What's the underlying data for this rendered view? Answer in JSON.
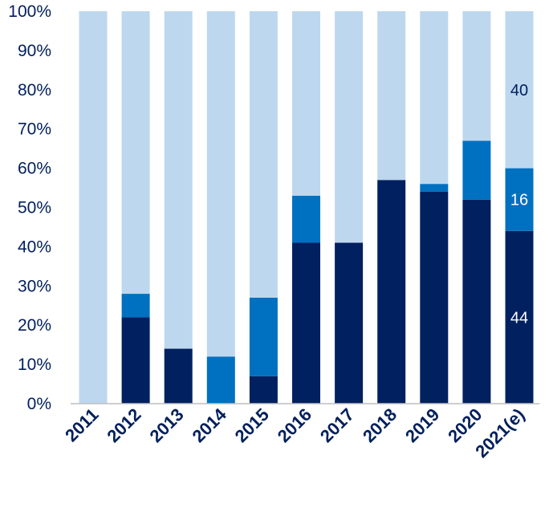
{
  "chart_data": {
    "type": "bar",
    "stacked": true,
    "percent": true,
    "categories": [
      "2011",
      "2012",
      "2013",
      "2014",
      "2015",
      "2016",
      "2017",
      "2018",
      "2019",
      "2020",
      "2021(e)"
    ],
    "series": [
      {
        "values": [
          0,
          22,
          14,
          0,
          7,
          41,
          41,
          57,
          54,
          52,
          44
        ],
        "color": "#002060"
      },
      {
        "values": [
          0,
          6,
          0,
          12,
          20,
          12,
          0,
          0,
          2,
          15,
          16
        ],
        "color": "#0070c0"
      },
      {
        "values": [
          100,
          72,
          86,
          88,
          73,
          47,
          59,
          43,
          44,
          33,
          40
        ],
        "color": "#bdd7ee"
      }
    ],
    "yticks": [
      "0%",
      "10%",
      "20%",
      "30%",
      "40%",
      "50%",
      "60%",
      "70%",
      "80%",
      "90%",
      "100%"
    ],
    "ylim": [
      0,
      100
    ],
    "grid": false,
    "legend": "none",
    "data_labels": [
      {
        "category": "2021(e)",
        "series": 0,
        "text": "44",
        "color": "#ffffff"
      },
      {
        "category": "2021(e)",
        "series": 1,
        "text": "16",
        "color": "#ffffff"
      },
      {
        "category": "2021(e)",
        "series": 2,
        "text": "40",
        "color": "#002060"
      }
    ],
    "axis_color": "#bfbfbf",
    "text_color": "#001f5c"
  }
}
